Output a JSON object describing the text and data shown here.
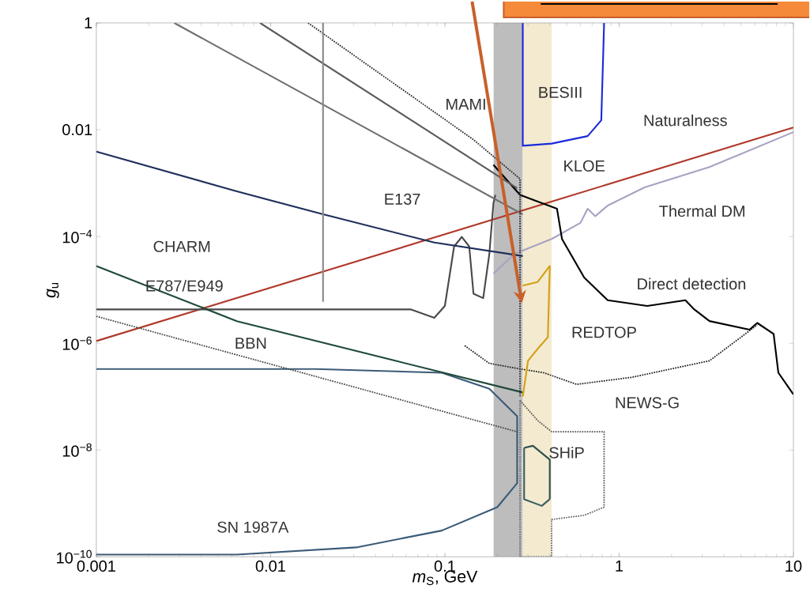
{
  "chart_data": {
    "type": "line",
    "xlabel": "*m*$_{S}$, GeV",
    "ylabel": "*g*$_{u}$",
    "log": "xy",
    "xlim": [
      0.001,
      10
    ],
    "ylim": [
      1e-10,
      1
    ],
    "xticks": [
      0.001,
      0.01,
      0.1,
      1,
      10
    ],
    "yticks": [
      {
        "value": 1e-10,
        "label": "10$^{−10}$"
      },
      {
        "value": 1e-08,
        "label": "10$^{−8}$"
      },
      {
        "value": 1e-06,
        "label": "10$^{−6}$"
      },
      {
        "value": 0.0001,
        "label": "10$^{−4}$"
      },
      0.01,
      1
    ],
    "marker": "none",
    "bands": [
      {
        "axis": "x",
        "from": 0.19,
        "to": 0.28,
        "color": "#bdbdbd"
      },
      {
        "axis": "x",
        "from": 0.28,
        "to": 0.41,
        "color": "#f3ead0"
      }
    ],
    "series": [
      {
        "color": "#b0392b",
        "x": [
          0.001,
          10
        ],
        "values": [
          1.1e-06,
          0.011
        ]
      },
      {
        "color": "#a8a2c2",
        "x": [
          0.19,
          0.25,
          0.41,
          0.6,
          0.66,
          0.73,
          0.86,
          1.4,
          3.3,
          10
        ],
        "values": [
          2e-05,
          4.7e-05,
          9e-05,
          0.00018,
          0.00033,
          0.00024,
          0.00038,
          0.00083,
          0.002,
          0.009
        ]
      },
      {
        "color": "#000000",
        "x": [
          0.19,
          0.27,
          0.44,
          0.47,
          0.63,
          0.86,
          1.45,
          2.4,
          2.7,
          3.3,
          5.6,
          6.2,
          7.7,
          8.2,
          10
        ],
        "values": [
          0.0022,
          0.0006,
          0.00033,
          9e-05,
          1.7e-05,
          6.4e-06,
          5e-06,
          6.4e-06,
          4.3e-06,
          2.6e-06,
          1.8e-06,
          2.4e-06,
          1.5e-06,
          2.8e-07,
          1.1e-07
        ]
      },
      {
        "color": "#1e1e1e",
        "line_style": "dotted",
        "x": [
          0.13,
          0.18,
          0.27,
          0.37,
          0.57,
          1.18,
          3.3,
          6.2
        ],
        "values": [
          9e-07,
          4.2e-07,
          3.3e-07,
          2.8e-07,
          1.7e-07,
          2.3e-07,
          4.7e-07,
          2.2e-06
        ]
      },
      {
        "color": "#555555",
        "line_style": "dotted",
        "x": [
          0.27,
          0.34,
          0.41,
          0.82,
          0.82
        ],
        "values": [
          8.5e-08,
          3.6e-08,
          2.2e-08,
          2.2e-08,
          8.5e-10
        ]
      },
      {
        "color": "#2f4f4f",
        "x": [
          0.285,
          0.32,
          0.4,
          0.4
        ],
        "values": [
          1.1e-08,
          1.2e-08,
          6.6e-09,
          1.2e-09
        ]
      },
      {
        "color": "#3b5b77",
        "x": [
          0.001,
          0.018,
          0.096,
          0.18,
          0.26,
          0.26,
          0.2,
          0.096,
          0.031,
          0.0064,
          0.001
        ],
        "values": [
          3.3e-07,
          3.3e-07,
          2.8e-07,
          1.4e-07,
          4.3e-08,
          2.4e-09,
          8.5e-10,
          3.1e-10,
          1.5e-10,
          1.1e-10,
          1.1e-10
        ]
      },
      {
        "color": "#444444",
        "line_style": "dotted",
        "x": [
          0.001,
          0.26
        ],
        "values": [
          3.2e-06,
          2.2e-08
        ]
      },
      {
        "color": "#4a4a4a",
        "x": [
          0.001,
          0.064,
          0.087,
          0.1,
          0.113,
          0.125,
          0.138,
          0.146,
          0.166,
          0.18,
          0.19,
          0.195
        ],
        "values": [
          4.3e-06,
          4.3e-06,
          3e-06,
          5e-06,
          6.5e-05,
          9.8e-05,
          6.5e-05,
          8.5e-06,
          7e-06,
          4.7e-05,
          0.00042,
          0.0006
        ]
      },
      {
        "color": "#1f2f5a",
        "x": [
          0.001,
          0.0064,
          0.02,
          0.087,
          0.28
        ],
        "values": [
          0.0039,
          0.0007,
          0.00026,
          7.7e-05,
          4.3e-05
        ]
      },
      {
        "color": "#1f4a3a",
        "x": [
          0.001,
          0.0064,
          0.052,
          0.28
        ],
        "values": [
          2.8e-05,
          2.6e-06,
          4.7e-07,
          1.2e-07
        ]
      },
      {
        "color": "#5a5a5a",
        "x": [
          0.0087,
          0.26
        ],
        "values": [
          1,
          0.0008
        ]
      },
      {
        "color": "#6e6e6e",
        "x": [
          0.0028,
          0.28
        ],
        "values": [
          1,
          0.00026
        ]
      },
      {
        "color": "#262626",
        "line_style": "dotted",
        "x": [
          0.0164,
          0.146,
          0.27,
          0.27
        ],
        "values": [
          1,
          0.0065,
          0.0012,
          1e-07
        ]
      },
      {
        "color": "#8a8a8a",
        "x": [
          0.02,
          0.02
        ],
        "values": [
          1,
          6e-06
        ]
      },
      {
        "color": "#1a2bd8",
        "x": [
          0.28,
          0.28,
          0.41,
          0.66,
          0.79,
          0.82
        ],
        "values": [
          1,
          0.005,
          0.0055,
          0.0076,
          0.015,
          1
        ]
      },
      {
        "color": "#d4a017",
        "x": [
          0.28,
          0.3,
          0.34,
          0.39,
          0.4,
          0.34,
          0.28
        ],
        "values": [
          1e-07,
          4.7e-07,
          7.8e-07,
          1.3e-06,
          2.8e-05,
          1.4e-05,
          1.2e-05
        ]
      },
      {
        "color": "#656565",
        "line_style": "dotted",
        "x": [
          0.27,
          0.27,
          0.41,
          0.41,
          0.63,
          0.82
        ],
        "values": [
          8.5e-08,
          1e-10,
          1e-10,
          5e-10,
          6e-10,
          8.5e-10
        ]
      },
      {
        "color": "#3a5f5f",
        "x": [
          0.285,
          0.285,
          0.36,
          0.4
        ],
        "values": [
          1.1e-08,
          1.2e-09,
          9e-10,
          1.2e-09
        ]
      }
    ],
    "annotations": [
      "Naturalness",
      "BESIII",
      "MAMI",
      "KLOE",
      "E137",
      "CHARM",
      "Thermal DM",
      "E787/E949",
      "Direct detection",
      "BBN",
      "REDTOP",
      "NEWS-G",
      "SHiP",
      "SN 1987A"
    ]
  }
}
